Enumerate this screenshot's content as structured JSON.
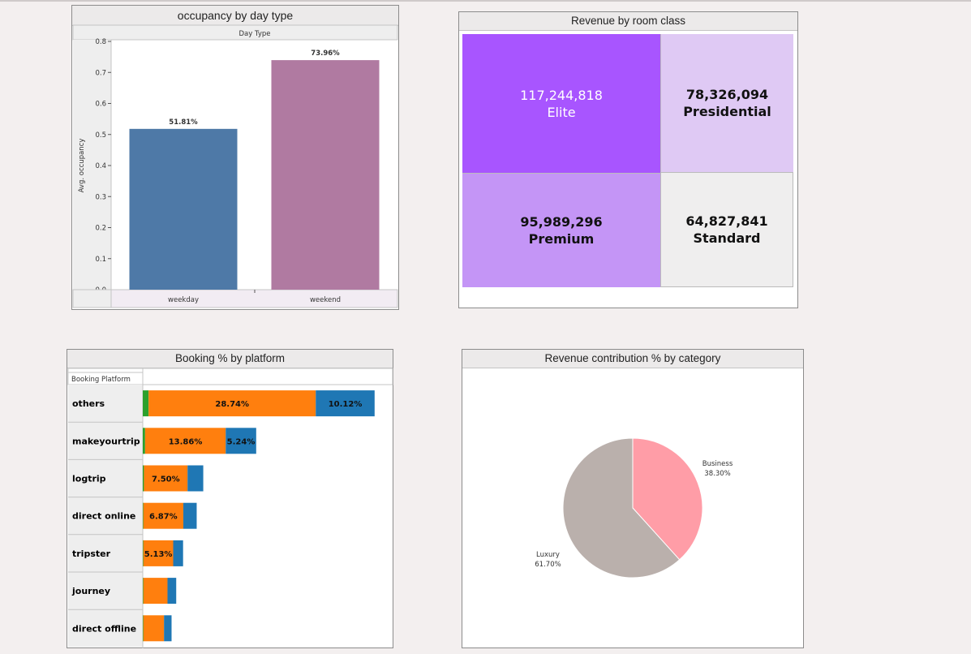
{
  "colors": {
    "weekday": "#4e79a7",
    "weekend": "#b07aa1",
    "elite": "#a855ff",
    "presidential": "#dfc9f4",
    "premium": "#c495f6",
    "standard": "#efeeee",
    "seg_green": "#2ca02c",
    "seg_orange": "#ff7f0e",
    "seg_blue": "#1f77b4",
    "business": "#ff9da7",
    "luxury": "#bab0ac"
  },
  "chart_data": [
    {
      "type": "bar",
      "title": "occupancy by day type",
      "header": "Day Type",
      "ylabel": "Avg. occupancy",
      "ylim": [
        0,
        0.8
      ],
      "yticks": [
        "0.0",
        "0.1",
        "0.2",
        "0.3",
        "0.4",
        "0.5",
        "0.6",
        "0.7",
        "0.8"
      ],
      "categories": [
        "weekday",
        "weekend"
      ],
      "values": [
        0.5181,
        0.7396
      ],
      "labels": [
        "51.81%",
        "73.96%"
      ]
    },
    {
      "type": "heatmap",
      "title": "Revenue by room class",
      "cells": [
        {
          "label": "Elite",
          "value": "117,244,818"
        },
        {
          "label": "Presidential",
          "value": "78,326,094"
        },
        {
          "label": "Premium",
          "value": "95,989,296"
        },
        {
          "label": "Standard",
          "value": "64,827,841"
        }
      ]
    },
    {
      "type": "bar",
      "title": "Booking % by platform",
      "row_header": "Booking Platform",
      "categories": [
        "others",
        "makeyourtrip",
        "logtrip",
        "direct online",
        "tripster",
        "journey",
        "direct offline"
      ],
      "series": [
        {
          "values": [
            1.0,
            0.4,
            0.2,
            0.1,
            0.1,
            0.1,
            0.1
          ]
        },
        {
          "values": [
            28.74,
            13.86,
            7.5,
            6.87,
            5.13,
            4.15,
            3.55
          ]
        },
        {
          "values": [
            10.12,
            5.24,
            2.7,
            2.3,
            1.7,
            1.5,
            1.3
          ]
        }
      ],
      "labels": [
        [
          "",
          "28.74%",
          "10.12%"
        ],
        [
          "",
          "13.86%",
          "5.24%"
        ],
        [
          "",
          "7.50%",
          ""
        ],
        [
          "",
          "6.87%",
          ""
        ],
        [
          "",
          "5.13%",
          ""
        ],
        [
          "",
          "",
          ""
        ],
        [
          "",
          "",
          ""
        ]
      ]
    },
    {
      "type": "pie",
      "title": "Revenue contribution % by category",
      "slices": [
        {
          "label": "Business",
          "value": 38.3,
          "text": "38.30%"
        },
        {
          "label": "Luxury",
          "value": 61.7,
          "text": "61.70%"
        }
      ]
    }
  ]
}
